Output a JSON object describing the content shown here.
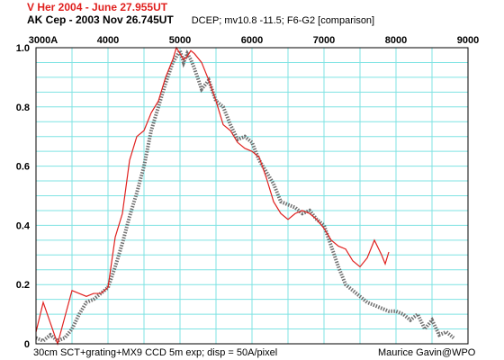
{
  "header": {
    "title_red": "V Her 2004 - June 27.955UT",
    "title_black": "AK Cep  -  2003 Nov 26.745UT",
    "subtitle": "DCEP; mv10.8 -11.5;  F6-G2  [comparison]"
  },
  "footer": {
    "left": "30cm SCT+grating+MX9 CCD   5m exp;  disp = 50A/pixel",
    "right": "Maurice Gavin@WPO"
  },
  "colors": {
    "grid": "#7fe3e3",
    "red_series": "#e0201e",
    "gray_series": "#707070",
    "axis": "#000000"
  },
  "chart_data": {
    "type": "line",
    "title": "V Her 2004 - June 27.955UT",
    "xlim": [
      3000,
      9000
    ],
    "ylim": [
      0,
      1.0
    ],
    "x_ticks": [
      "3000A",
      "4000",
      "5000",
      "6000",
      "7000",
      "8000",
      "9000"
    ],
    "y_ticks": [
      "0",
      "0.2",
      "0.4",
      "0.6",
      "0.8",
      "1.0"
    ],
    "grid": true,
    "series": [
      {
        "name": "V Her 2004 - June 27.955UT",
        "x": [
          3000,
          3100,
          3200,
          3300,
          3400,
          3500,
          3600,
          3700,
          3800,
          3900,
          4000,
          4100,
          4200,
          4300,
          4400,
          4500,
          4600,
          4700,
          4800,
          4900,
          4950,
          5000,
          5050,
          5100,
          5150,
          5200,
          5300,
          5400,
          5500,
          5600,
          5700,
          5800,
          5900,
          6000,
          6100,
          6200,
          6300,
          6400,
          6500,
          6600,
          6700,
          6800,
          6900,
          7000,
          7100,
          7200,
          7300,
          7400,
          7500,
          7600,
          7700,
          7800,
          7850,
          7900
        ],
        "y": [
          0.04,
          0.14,
          0.07,
          0.0,
          0.09,
          0.18,
          0.17,
          0.16,
          0.17,
          0.17,
          0.19,
          0.36,
          0.44,
          0.62,
          0.7,
          0.72,
          0.78,
          0.82,
          0.9,
          0.96,
          1.0,
          0.98,
          0.96,
          0.97,
          0.99,
          0.98,
          0.95,
          0.89,
          0.82,
          0.74,
          0.72,
          0.68,
          0.66,
          0.65,
          0.63,
          0.56,
          0.48,
          0.44,
          0.42,
          0.44,
          0.45,
          0.44,
          0.42,
          0.39,
          0.35,
          0.33,
          0.32,
          0.28,
          0.26,
          0.29,
          0.35,
          0.3,
          0.27,
          0.31
        ]
      },
      {
        "name": "AK Cep  -  2003 Nov 26.745UT",
        "x": [
          3000,
          3100,
          3200,
          3300,
          3400,
          3500,
          3600,
          3700,
          3800,
          3900,
          4000,
          4100,
          4200,
          4300,
          4400,
          4500,
          4600,
          4700,
          4800,
          4900,
          4950,
          5000,
          5050,
          5100,
          5150,
          5200,
          5300,
          5400,
          5500,
          5600,
          5700,
          5800,
          5900,
          6000,
          6100,
          6200,
          6300,
          6400,
          6500,
          6600,
          6700,
          6800,
          6900,
          7000,
          7100,
          7200,
          7300,
          7400,
          7500,
          7600,
          7700,
          7800,
          7900,
          8000,
          8100,
          8200,
          8300,
          8400,
          8500,
          8600,
          8700,
          8800
        ],
        "y": [
          0.02,
          0.01,
          0.03,
          0.01,
          0.02,
          0.05,
          0.1,
          0.14,
          0.15,
          0.17,
          0.19,
          0.26,
          0.34,
          0.43,
          0.51,
          0.6,
          0.72,
          0.8,
          0.88,
          0.95,
          0.97,
          0.99,
          0.95,
          0.98,
          0.96,
          0.93,
          0.86,
          0.89,
          0.82,
          0.8,
          0.74,
          0.69,
          0.7,
          0.68,
          0.62,
          0.58,
          0.54,
          0.48,
          0.47,
          0.46,
          0.44,
          0.45,
          0.42,
          0.4,
          0.33,
          0.26,
          0.2,
          0.18,
          0.16,
          0.14,
          0.13,
          0.12,
          0.11,
          0.11,
          0.1,
          0.08,
          0.1,
          0.05,
          0.08,
          0.03,
          0.04,
          0.02
        ]
      }
    ]
  }
}
